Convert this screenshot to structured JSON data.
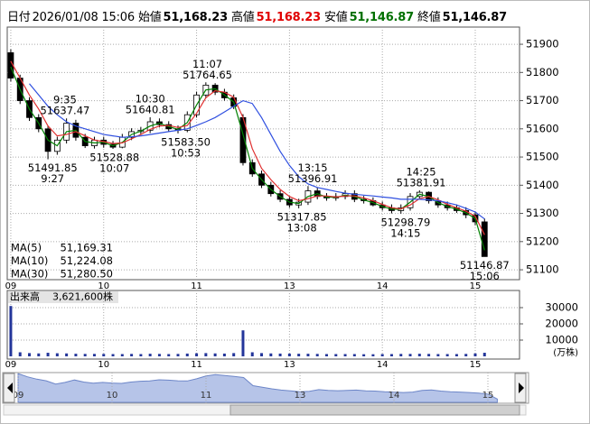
{
  "chart_data": {
    "type": "candlestick",
    "header": [
      {
        "label": "日付",
        "value": "2026/01/08 15:06",
        "color": "#000000"
      },
      {
        "label": "始値",
        "value": "51,168.23",
        "color": "#000000"
      },
      {
        "label": "高値",
        "value": "51,168.23",
        "color": "#e00000"
      },
      {
        "label": "安値",
        "value": "51,146.87",
        "color": "#007000"
      },
      {
        "label": "終値",
        "value": "51,146.87",
        "color": "#000000"
      }
    ],
    "x": [
      0,
      6,
      12,
      18,
      24,
      30,
      36,
      42,
      48,
      54,
      60,
      66,
      72,
      78,
      84,
      90,
      96,
      102,
      108,
      114,
      120,
      126,
      132,
      138,
      144,
      150,
      156,
      162,
      168,
      174,
      180,
      186,
      192,
      198,
      204,
      210,
      216,
      222,
      228,
      234,
      240,
      246,
      252,
      258,
      264,
      270,
      276,
      282,
      288,
      294,
      300,
      306
    ],
    "open": [
      51870,
      51780,
      51700,
      51640,
      51600,
      51520,
      51560,
      51620,
      51570,
      51540,
      51560,
      51545,
      51535,
      51570,
      51590,
      51595,
      51625,
      51615,
      51600,
      51595,
      51650,
      51720,
      51755,
      51730,
      51710,
      51640,
      51480,
      51440,
      51400,
      51370,
      51350,
      51330,
      51340,
      51380,
      51360,
      51355,
      51360,
      51370,
      51350,
      51345,
      51330,
      51320,
      51310,
      51320,
      51360,
      51375,
      51345,
      51330,
      51320,
      51310,
      51295,
      51270
    ],
    "high": [
      51882,
      51792,
      51712,
      51652,
      51612,
      51572,
      51637,
      51632,
      51582,
      51572,
      51572,
      51557,
      51582,
      51602,
      51607,
      51641,
      51637,
      51627,
      51612,
      51662,
      51732,
      51765,
      51762,
      51742,
      51722,
      51652,
      51492,
      51452,
      51412,
      51382,
      51362,
      51352,
      51397,
      51392,
      51372,
      51372,
      51382,
      51382,
      51362,
      51357,
      51342,
      51332,
      51332,
      51372,
      51382,
      51378,
      51357,
      51342,
      51332,
      51322,
      51307,
      51282
    ],
    "low": [
      51768,
      51688,
      51628,
      51588,
      51492,
      51508,
      51548,
      51558,
      51532,
      51530,
      51533,
      51529,
      51531,
      51560,
      51580,
      51585,
      51605,
      51590,
      51584,
      51588,
      51640,
      51710,
      51720,
      51700,
      51670,
      51470,
      51430,
      51390,
      51360,
      51340,
      51320,
      51318,
      51330,
      51350,
      51345,
      51345,
      51350,
      51340,
      51335,
      51325,
      51310,
      51300,
      51299,
      51310,
      51350,
      51335,
      51320,
      51310,
      51302,
      51283,
      51258,
      51147
    ],
    "close": [
      51780,
      51700,
      51640,
      51600,
      51520,
      51560,
      51620,
      51570,
      51540,
      51560,
      51545,
      51535,
      51570,
      51590,
      51595,
      51625,
      51615,
      51600,
      51595,
      51650,
      51720,
      51755,
      51730,
      51710,
      51680,
      51480,
      51440,
      51400,
      51370,
      51350,
      51330,
      51340,
      51380,
      51360,
      51355,
      51360,
      51370,
      51350,
      51345,
      51330,
      51320,
      51310,
      51320,
      51360,
      51375,
      51345,
      51330,
      51320,
      51310,
      51295,
      51270,
      51147
    ],
    "up_color": "#ffffff",
    "down_color": "#000000",
    "series": [
      {
        "name": "MA(5)",
        "color": "#008000",
        "last_label": "51,169.31",
        "values": [
          51820,
          51740,
          51670,
          51620,
          51560,
          51540,
          51590,
          51595,
          51555,
          51550,
          51552,
          51540,
          51552,
          51580,
          51592,
          51610,
          51620,
          51608,
          51598,
          51622,
          51685,
          51738,
          51742,
          51720,
          51695,
          51580,
          51460,
          51420,
          51385,
          51360,
          51340,
          51335,
          51360,
          51370,
          51358,
          51357,
          51365,
          51360,
          51348,
          51338,
          51325,
          51315,
          51315,
          51340,
          51368,
          51360,
          51338,
          51325,
          51315,
          51302,
          51282,
          51169.31
        ]
      },
      {
        "name": "MA(10)",
        "color": "#e03030",
        "last_label": "51,224.08",
        "values": [
          51840,
          51780,
          51720,
          51670,
          51610,
          51575,
          51580,
          51590,
          51575,
          51560,
          51555,
          51548,
          51550,
          51565,
          51580,
          51598,
          51610,
          51612,
          51605,
          51612,
          51655,
          51710,
          51735,
          51730,
          51712,
          51640,
          51530,
          51460,
          51420,
          51385,
          51360,
          51345,
          51352,
          51362,
          51362,
          51358,
          51362,
          51362,
          51355,
          51345,
          51332,
          51320,
          51316,
          51330,
          51352,
          51360,
          51348,
          51332,
          51320,
          51308,
          51290,
          51224.08
        ]
      },
      {
        "name": "MA(30)",
        "color": "#3050e0",
        "last_label": "51,280.50",
        "values": [
          null,
          null,
          51760,
          51720,
          51680,
          51650,
          51625,
          51610,
          51600,
          51590,
          51580,
          51575,
          51570,
          51572,
          51575,
          51580,
          51585,
          51590,
          51595,
          51600,
          51612,
          51625,
          51640,
          51660,
          51680,
          51700,
          51690,
          51640,
          51580,
          51520,
          51470,
          51430,
          51405,
          51392,
          51385,
          51378,
          51372,
          51368,
          51365,
          51362,
          51358,
          51355,
          51350,
          51350,
          51350,
          51348,
          51345,
          51338,
          51330,
          51318,
          51305,
          51280.5
        ]
      }
    ],
    "annotations": [
      {
        "time": "9:35",
        "value": 51637.47,
        "label": "51637.47",
        "side": "above"
      },
      {
        "time": "9:27",
        "value": 51491.85,
        "label": "51491.85",
        "side": "below"
      },
      {
        "time": "10:30",
        "value": 51640.81,
        "label": "51640.81",
        "side": "above"
      },
      {
        "time": "10:07",
        "value": 51528.88,
        "label": "51528.88",
        "side": "below"
      },
      {
        "time": "10:53",
        "value": 51583.5,
        "label": "51583.50",
        "side": "below"
      },
      {
        "time": "11:07",
        "value": 51764.65,
        "label": "51764.65",
        "side": "above"
      },
      {
        "time": "13:15",
        "value": 51396.91,
        "label": "51396.91",
        "side": "above"
      },
      {
        "time": "13:08",
        "value": 51317.85,
        "label": "51317.85",
        "side": "below"
      },
      {
        "time": "14:25",
        "value": 51381.91,
        "label": "51381.91",
        "side": "above"
      },
      {
        "time": "14:15",
        "value": 51298.79,
        "label": "51298.79",
        "side": "below"
      },
      {
        "time": "15:06",
        "value": 51146.87,
        "label": "51146.87",
        "side": "below"
      }
    ],
    "xlim": [
      -2.3,
      328.6
    ],
    "xticks": [
      {
        "value": 0,
        "label": "09"
      },
      {
        "value": 60,
        "label": "10"
      },
      {
        "value": 120,
        "label": "11"
      },
      {
        "value": 180,
        "label": "13"
      },
      {
        "value": 240,
        "label": "14"
      },
      {
        "value": 300,
        "label": "15"
      }
    ],
    "ylim": [
      51065,
      51961
    ],
    "yticks": [
      51100,
      51200,
      51300,
      51400,
      51500,
      51600,
      51700,
      51800,
      51900
    ],
    "grid": true,
    "volume": {
      "label": "出来高",
      "total": "3,621,600株",
      "unit": "(万株)",
      "color": "#23359a",
      "values": [
        31000,
        2500,
        2000,
        1800,
        2200,
        1900,
        1800,
        1600,
        1500,
        1500,
        1500,
        1400,
        1400,
        1500,
        1400,
        1600,
        1500,
        1400,
        1500,
        1700,
        1900,
        2000,
        1800,
        1700,
        2000,
        16000,
        2500,
        2000,
        1800,
        1700,
        1700,
        1600,
        1600,
        1500,
        1400,
        1400,
        1400,
        1400,
        1300,
        1300,
        1400,
        1400,
        1500,
        1500,
        1600,
        1500,
        1400,
        1400,
        1400,
        1500,
        1800,
        2200
      ],
      "ylim": [
        -1667,
        38333
      ],
      "yticks": [
        10000,
        20000,
        30000
      ]
    }
  }
}
